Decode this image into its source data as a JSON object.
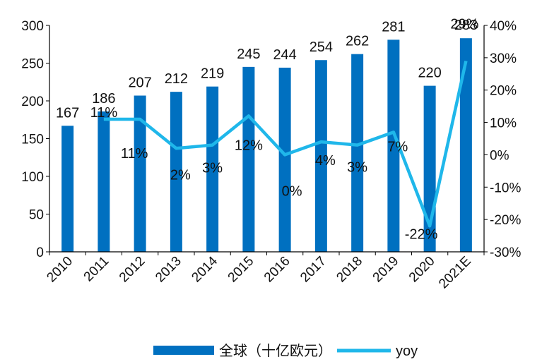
{
  "chart_data": {
    "type": "bar+line",
    "categories": [
      "2010",
      "2011",
      "2012",
      "2013",
      "2014",
      "2015",
      "2016",
      "2017",
      "2018",
      "2019",
      "2020",
      "2021E"
    ],
    "series": [
      {
        "name": "全球（十亿欧元）",
        "type": "bar",
        "axis": "left",
        "color": "#0070C0",
        "values": [
          167,
          186,
          207,
          212,
          219,
          245,
          244,
          254,
          262,
          281,
          220,
          283
        ]
      },
      {
        "name": "yoy",
        "type": "line",
        "axis": "right",
        "color": "#1FB7EA",
        "values": [
          11,
          11,
          2,
          3,
          12,
          0,
          4,
          3,
          7,
          -22,
          29
        ],
        "x": [
          "2011",
          "2012",
          "2013",
          "2014",
          "2015",
          "2016",
          "2017",
          "2018",
          "2019",
          "2020",
          "2021E"
        ],
        "labels": [
          "11%",
          "11%",
          "2%",
          "3%",
          "12%",
          "0%",
          "4%",
          "3%",
          "7%",
          "-22%",
          "29%"
        ]
      }
    ],
    "left_axis": {
      "ylim": [
        0,
        300
      ],
      "ticks": [
        "0",
        "50",
        "100",
        "150",
        "200",
        "250",
        "300"
      ]
    },
    "right_axis": {
      "ylim": [
        -30,
        40
      ],
      "ticks": [
        "-30%",
        "-20%",
        "-10%",
        "0%",
        "10%",
        "20%",
        "30%",
        "40%"
      ]
    },
    "legend": {
      "placement": "bottom"
    },
    "grid": false
  }
}
